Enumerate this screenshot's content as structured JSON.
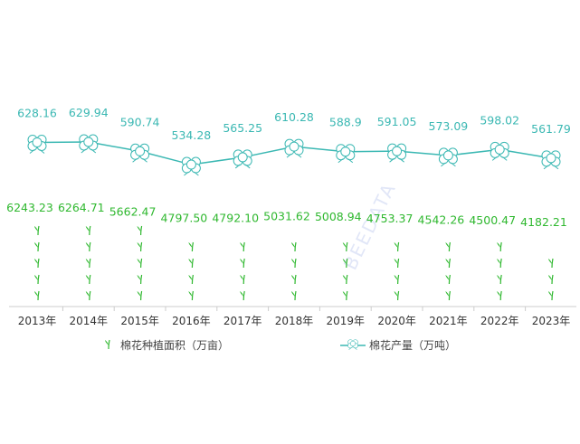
{
  "chart_data": {
    "type": "line",
    "categories": [
      "2013年",
      "2014年",
      "2015年",
      "2016年",
      "2017年",
      "2018年",
      "2019年",
      "2020年",
      "2021年",
      "2022年",
      "2023年"
    ],
    "series": [
      {
        "name": "棉花种植面积（万亩）",
        "kind": "pictogram-column",
        "values": [
          6243.23,
          6264.71,
          5662.47,
          4797.5,
          4792.1,
          5031.62,
          5008.94,
          4753.37,
          4542.26,
          4500.47,
          4182.21
        ],
        "labels": [
          "6243.23",
          "6264.71",
          "5662.47",
          "4797.50",
          "4792.10",
          "5031.62",
          "5008.94",
          "4753.37",
          "4542.26",
          "4500.47",
          "4182.21"
        ],
        "color": "#2fb82f"
      },
      {
        "name": "棉花产量（万吨）",
        "kind": "line",
        "values": [
          628.16,
          629.94,
          590.74,
          534.28,
          565.25,
          610.28,
          588.9,
          591.05,
          573.09,
          598.02,
          561.79
        ],
        "labels": [
          "628.16",
          "629.94",
          "590.74",
          "534.28",
          "565.25",
          "610.28",
          "588.9",
          "591.05",
          "573.09",
          "598.02",
          "561.79"
        ],
        "color": "#3bb8b3"
      }
    ],
    "legend": "bottom",
    "grid": false,
    "watermark": "BEEDATA"
  }
}
